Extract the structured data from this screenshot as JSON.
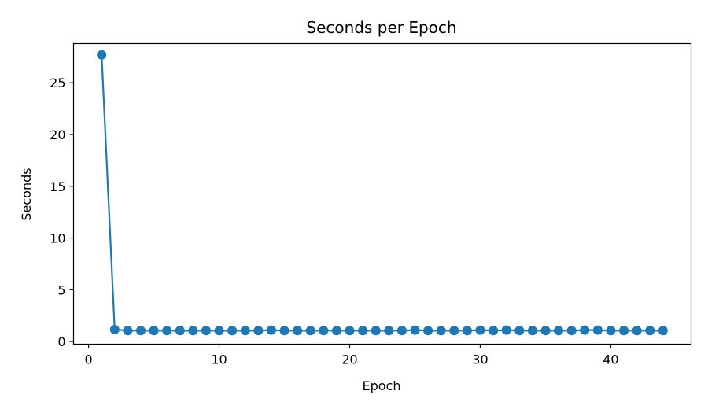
{
  "chart_data": {
    "type": "line",
    "title": "Seconds per Epoch",
    "xlabel": "Epoch",
    "ylabel": "Seconds",
    "xlim": [
      -1.15,
      46.15
    ],
    "ylim": [
      -0.26,
      28.78
    ],
    "xticks": [
      0,
      10,
      20,
      30,
      40
    ],
    "yticks": [
      0,
      5,
      10,
      15,
      20,
      25
    ],
    "grid": false,
    "legend": "none",
    "marker": "circle",
    "color": "#1f77b4",
    "series": [
      {
        "x": [
          1,
          2,
          3,
          4,
          5,
          6,
          7,
          8,
          9,
          10,
          11,
          12,
          13,
          14,
          15,
          16,
          17,
          18,
          19,
          20,
          21,
          22,
          23,
          24,
          25,
          26,
          27,
          28,
          29,
          30,
          31,
          32,
          33,
          34,
          35,
          36,
          37,
          38,
          39,
          40,
          41,
          42,
          43,
          44
        ],
        "values": [
          27.7,
          1.15,
          1.05,
          1.05,
          1.05,
          1.05,
          1.05,
          1.05,
          1.05,
          1.05,
          1.05,
          1.05,
          1.05,
          1.1,
          1.05,
          1.05,
          1.05,
          1.05,
          1.05,
          1.05,
          1.05,
          1.05,
          1.05,
          1.05,
          1.1,
          1.05,
          1.05,
          1.05,
          1.05,
          1.1,
          1.05,
          1.1,
          1.05,
          1.05,
          1.05,
          1.05,
          1.05,
          1.1,
          1.1,
          1.05,
          1.05,
          1.05,
          1.05,
          1.05
        ]
      }
    ]
  }
}
